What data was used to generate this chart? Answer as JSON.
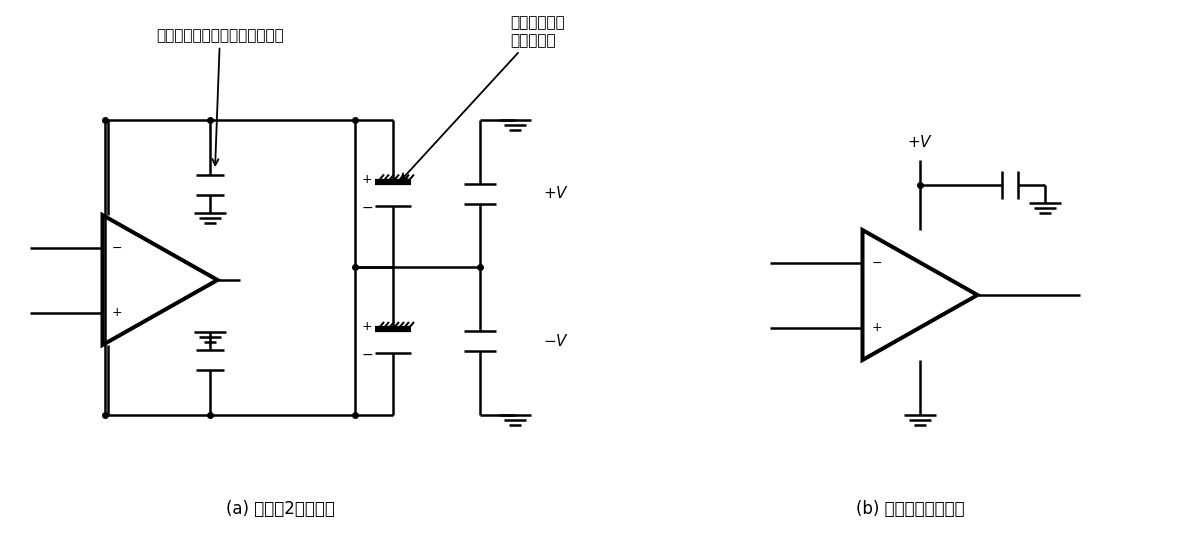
{
  "label_a": "(a) 基本的2电源方式",
  "label_b": "(b) 使用单电源的情况",
  "annotation1": "靠近运算放大器处接陶瓷电容器",
  "annotation2": "靠近电源处接\n电解电容器",
  "bg_color": "#ffffff",
  "line_color": "#000000",
  "lw": 1.8
}
